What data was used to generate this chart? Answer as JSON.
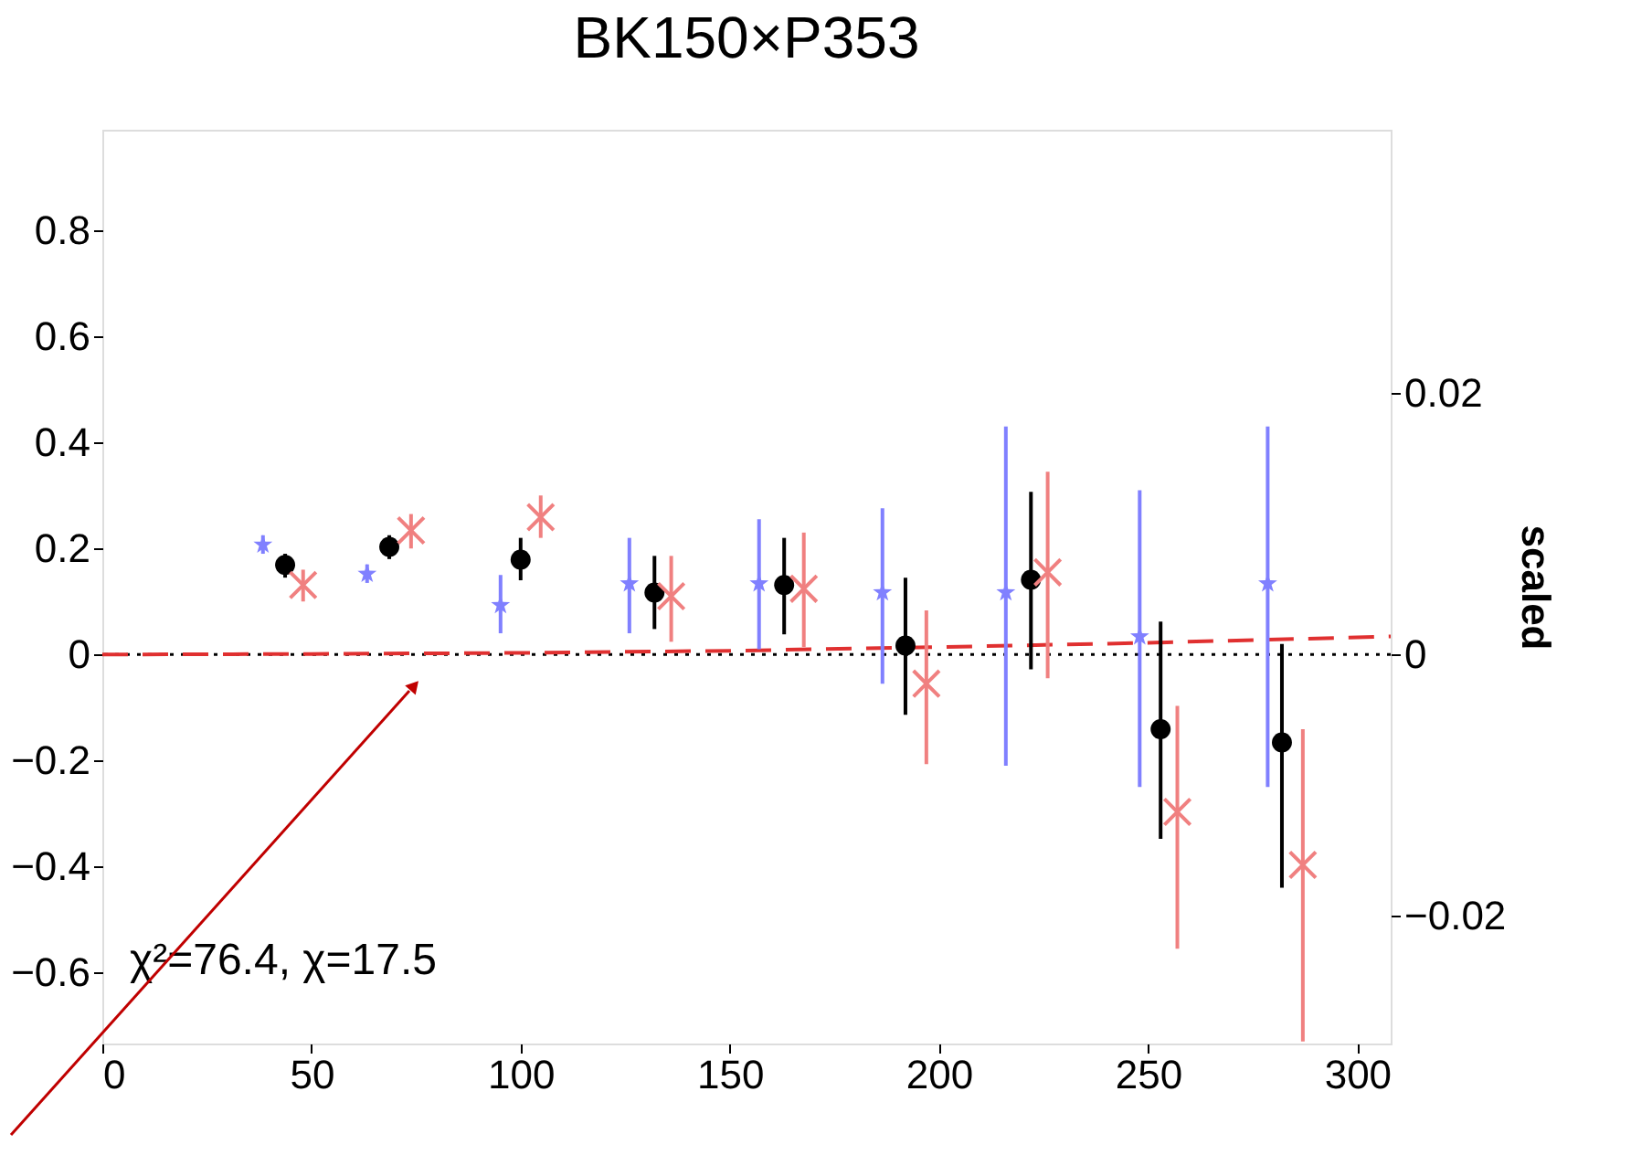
{
  "chart_data": {
    "type": "scatter",
    "title": "BK150×P353",
    "y2label": "scaled",
    "xlim": [
      0,
      308
    ],
    "xticks": [
      0,
      50,
      100,
      150,
      200,
      250,
      300
    ],
    "ylim": [
      -0.734,
      0.99
    ],
    "yticks": [
      {
        "value": -0.6,
        "label": "−0.6"
      },
      {
        "value": -0.4,
        "label": "−0.4"
      },
      {
        "value": -0.2,
        "label": "−0.2"
      },
      0,
      0.2,
      0.4,
      0.6,
      0.8
    ],
    "y2lim": [
      -0.0298,
      0.0401
    ],
    "y2ticks": [
      {
        "value": -0.02,
        "label": "−0.02"
      },
      0,
      0.02
    ],
    "grid": false,
    "annotations": [
      "χ²=76.4, χ=17.5"
    ],
    "ref_lines": [
      {
        "axis": "y",
        "value": 0,
        "color": "#000000",
        "line_style": "dotted"
      }
    ],
    "series": [
      {
        "type": "line",
        "color": "#e03030",
        "line_style": "dashed",
        "marker": "none",
        "x": [
          0,
          50,
          100,
          150,
          200,
          250,
          308
        ],
        "values": [
          0,
          0.001,
          0.003,
          0.007,
          0.014,
          0.022,
          0.034
        ]
      },
      {
        "color": "#8080ff",
        "marker": "star",
        "x": [
          38.4,
          63.3,
          95.2,
          126,
          157,
          186.5,
          216,
          248,
          278.6
        ],
        "values": [
          0.207,
          0.152,
          0.093,
          0.134,
          0.134,
          0.117,
          0.117,
          0.034,
          0.134
        ],
        "errors": [
          [
            0.19,
            0.225
          ],
          [
            0.135,
            0.17
          ],
          [
            0.04,
            0.15
          ],
          [
            0.04,
            0.22
          ],
          [
            0.01,
            0.255
          ],
          [
            -0.055,
            0.276
          ],
          [
            -0.21,
            0.43
          ],
          [
            -0.25,
            0.31
          ],
          [
            -0.25,
            0.43
          ]
        ]
      },
      {
        "color": "#000000",
        "marker": "circle",
        "x": [
          43.7,
          68.6,
          100,
          132,
          163,
          192,
          222,
          253,
          282
        ],
        "values": [
          0.169,
          0.203,
          0.179,
          0.117,
          0.131,
          0.017,
          0.141,
          -0.141,
          -0.166
        ],
        "errors": [
          [
            0.145,
            0.19
          ],
          [
            0.18,
            0.225
          ],
          [
            0.14,
            0.22
          ],
          [
            0.048,
            0.186
          ],
          [
            0.038,
            0.22
          ],
          [
            -0.114,
            0.145
          ],
          [
            -0.028,
            0.307
          ],
          [
            -0.348,
            0.062
          ],
          [
            -0.44,
            0.02
          ]
        ]
      },
      {
        "color": "#f08080",
        "marker": "cross",
        "x": [
          48,
          73.8,
          104.8,
          136,
          167.7,
          197,
          226,
          257,
          287
        ],
        "values": [
          0.131,
          0.234,
          0.259,
          0.11,
          0.124,
          -0.055,
          0.155,
          -0.297,
          -0.397
        ],
        "errors": [
          [
            0.1,
            0.16
          ],
          [
            0.2,
            0.265
          ],
          [
            0.22,
            0.3
          ],
          [
            0.024,
            0.186
          ],
          [
            0.014,
            0.23
          ],
          [
            -0.207,
            0.083
          ],
          [
            -0.045,
            0.345
          ],
          [
            -0.555,
            -0.097
          ],
          [
            -0.73,
            -0.141
          ]
        ]
      }
    ]
  }
}
